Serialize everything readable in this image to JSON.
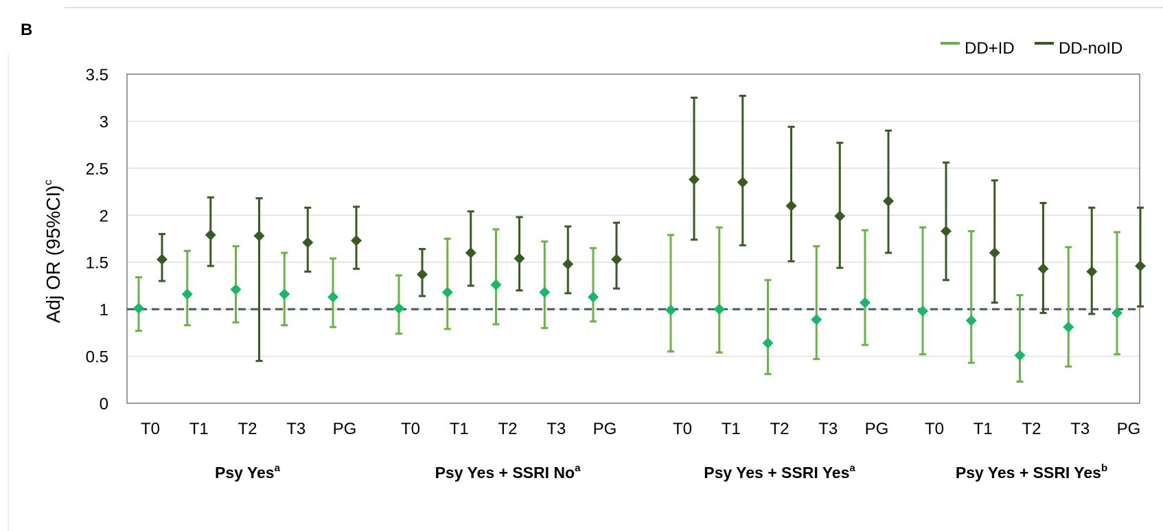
{
  "panel_label": "B",
  "colors": {
    "dd_id": "#6ab445",
    "dd_noid": "#3a5a24",
    "marker_id": "#17b86a",
    "marker_noid": "#3a5a24",
    "refline": "#44546a",
    "grid": "#d9d9d9"
  },
  "chart_data": {
    "type": "scatter",
    "title": "",
    "ylabel": "Adj OR (95%CI)",
    "ylabel_sup": "c",
    "ylim": [
      0,
      3.5
    ],
    "yticks": [
      "0",
      "0.5",
      "1",
      "1.5",
      "2",
      "2.5",
      "3",
      "3.5"
    ],
    "grid": true,
    "reference_line": 1,
    "legend_position": "top-right",
    "legend": [
      "DD+ID",
      "DD-noID"
    ],
    "groups": [
      {
        "label": "Psy Yes",
        "sup": "a",
        "periods": [
          "T0",
          "T1",
          "T2",
          "T3",
          "PG"
        ]
      },
      {
        "label": "Psy Yes + SSRI No",
        "sup": "a",
        "periods": [
          "T0",
          "T1",
          "T2",
          "T3",
          "PG"
        ]
      },
      {
        "label": "Psy Yes + SSRI Yes",
        "sup": "a",
        "periods": [
          "T0",
          "T1",
          "T2",
          "T3",
          "PG"
        ]
      },
      {
        "label": "Psy Yes + SSRI Yes",
        "sup": "b",
        "periods": [
          "T0",
          "T1",
          "T2",
          "T3",
          "PG"
        ]
      }
    ],
    "series": [
      {
        "name": "DD+ID",
        "or": [
          1.01,
          1.16,
          1.21,
          1.16,
          1.13,
          1.01,
          1.18,
          1.26,
          1.18,
          1.13,
          0.99,
          1.0,
          0.64,
          0.89,
          1.07,
          0.98,
          0.88,
          0.51,
          0.81,
          0.96
        ],
        "lower": [
          0.77,
          0.83,
          0.86,
          0.83,
          0.81,
          0.74,
          0.79,
          0.84,
          0.8,
          0.87,
          0.55,
          0.54,
          0.31,
          0.47,
          0.62,
          0.52,
          0.43,
          0.23,
          0.39,
          0.52
        ],
        "upper": [
          1.34,
          1.62,
          1.67,
          1.6,
          1.54,
          1.36,
          1.75,
          1.85,
          1.72,
          1.65,
          1.79,
          1.87,
          1.31,
          1.67,
          1.84,
          1.87,
          1.83,
          1.15,
          1.66,
          1.82
        ]
      },
      {
        "name": "DD-noID",
        "or": [
          1.53,
          1.79,
          1.78,
          1.71,
          1.73,
          1.37,
          1.6,
          1.54,
          1.48,
          1.53,
          2.38,
          2.35,
          2.1,
          1.99,
          2.15,
          1.83,
          1.6,
          1.43,
          1.4,
          1.46
        ],
        "lower": [
          1.3,
          1.46,
          0.45,
          1.4,
          1.43,
          1.14,
          1.25,
          1.2,
          1.17,
          1.22,
          1.74,
          1.68,
          1.51,
          1.44,
          1.6,
          1.31,
          1.07,
          0.96,
          0.95,
          1.03
        ],
        "upper": [
          1.8,
          2.19,
          2.18,
          2.08,
          2.09,
          1.64,
          2.04,
          1.98,
          1.88,
          1.92,
          3.25,
          3.27,
          2.94,
          2.77,
          2.9,
          2.56,
          2.37,
          2.13,
          2.08,
          2.08
        ]
      }
    ]
  }
}
